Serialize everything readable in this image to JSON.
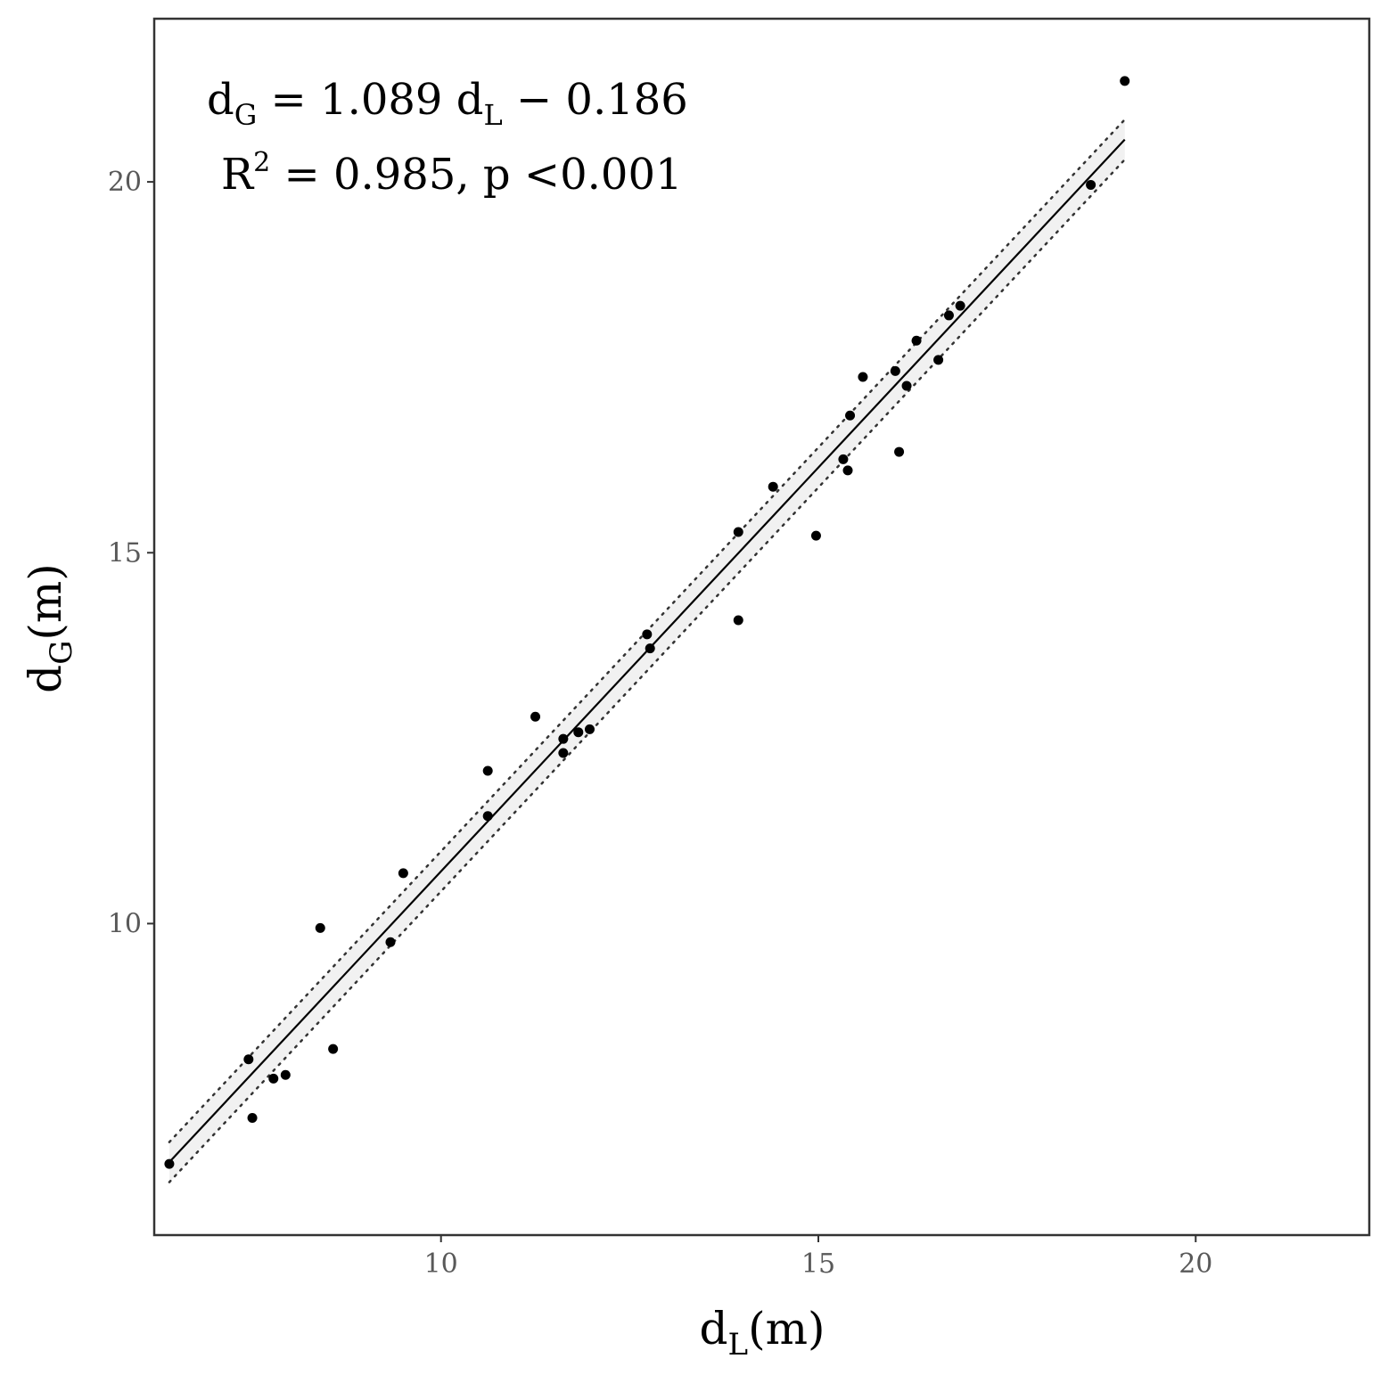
{
  "chart_data": {
    "type": "scatter",
    "title": "",
    "xlabel": {
      "main": "d",
      "sub": "L",
      "unit": "(m)"
    },
    "ylabel": {
      "main": "d",
      "sub": "G",
      "unit": "(m)"
    },
    "xlim": [
      6.2,
      22.3
    ],
    "ylim": [
      5.8,
      22.2
    ],
    "x_ticks": [
      10,
      15,
      20
    ],
    "y_ticks": [
      10,
      15,
      20
    ],
    "x_tick_labels": [
      "10",
      "15",
      "20"
    ],
    "y_tick_labels": [
      "10",
      "15",
      "20"
    ],
    "grid": false,
    "legend": "none",
    "colors": {
      "points": "#000000",
      "fit_line": "#000000",
      "band_fill": "#ebebeb",
      "panel_border": "#333333",
      "tick_text": "#595959"
    },
    "equation": {
      "line1": {
        "lhs_main": "d",
        "lhs_sub": "G",
        "eq_mid": " = 1.089 d",
        "mid_sub": "L",
        "tail": " − 0.186"
      },
      "line2": {
        "r": "R",
        "sup": "2",
        "rest": " = 0.985, p <0.001"
      }
    },
    "regression": {
      "slope": 1.089,
      "intercept": -0.186,
      "x_range": [
        6.4,
        19.06
      ],
      "band_halfwidth": 0.27
    },
    "points": [
      {
        "x": 6.4,
        "y": 6.76
      },
      {
        "x": 7.45,
        "y": 8.17
      },
      {
        "x": 7.5,
        "y": 7.38
      },
      {
        "x": 7.78,
        "y": 7.91
      },
      {
        "x": 7.94,
        "y": 7.96
      },
      {
        "x": 8.4,
        "y": 9.94
      },
      {
        "x": 8.57,
        "y": 8.31
      },
      {
        "x": 9.33,
        "y": 9.75
      },
      {
        "x": 9.5,
        "y": 10.68
      },
      {
        "x": 10.62,
        "y": 11.45
      },
      {
        "x": 10.62,
        "y": 12.06
      },
      {
        "x": 11.25,
        "y": 12.79
      },
      {
        "x": 11.62,
        "y": 12.3
      },
      {
        "x": 11.62,
        "y": 12.49
      },
      {
        "x": 11.82,
        "y": 12.58
      },
      {
        "x": 11.97,
        "y": 12.62
      },
      {
        "x": 12.73,
        "y": 13.9
      },
      {
        "x": 12.77,
        "y": 13.71
      },
      {
        "x": 13.94,
        "y": 15.28
      },
      {
        "x": 13.94,
        "y": 14.09
      },
      {
        "x": 14.4,
        "y": 15.89
      },
      {
        "x": 14.97,
        "y": 15.23
      },
      {
        "x": 15.33,
        "y": 16.26
      },
      {
        "x": 15.39,
        "y": 16.11
      },
      {
        "x": 15.42,
        "y": 16.85
      },
      {
        "x": 15.59,
        "y": 17.37
      },
      {
        "x": 16.02,
        "y": 17.45
      },
      {
        "x": 16.07,
        "y": 16.36
      },
      {
        "x": 16.17,
        "y": 17.25
      },
      {
        "x": 16.3,
        "y": 17.86
      },
      {
        "x": 16.59,
        "y": 17.6
      },
      {
        "x": 16.73,
        "y": 18.2
      },
      {
        "x": 16.88,
        "y": 18.33
      },
      {
        "x": 18.61,
        "y": 19.96
      },
      {
        "x": 19.06,
        "y": 21.36
      }
    ]
  }
}
